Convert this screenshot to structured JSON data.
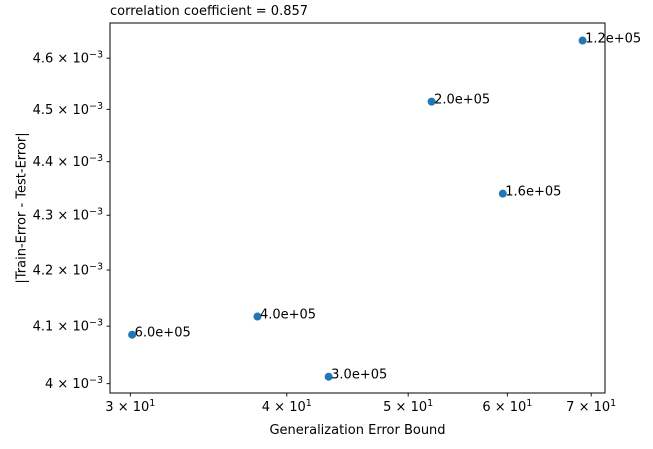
{
  "chart_data": {
    "type": "scatter",
    "title": "correlation coefficient = 0.857",
    "xlabel": "Generalization Error Bound",
    "ylabel": "|Train-Error - Test-Error|",
    "xscale": "log",
    "yscale": "log",
    "xlim": [
      28.9,
      71.8
    ],
    "ylim": [
      0.003984,
      0.00467
    ],
    "grid": false,
    "legend": "none",
    "marker_color": "#1f77b4",
    "spine_color": "#000000",
    "x_ticks": [
      {
        "value": 30,
        "mantissa": "3",
        "exponent": "1"
      },
      {
        "value": 40,
        "mantissa": "4",
        "exponent": "1"
      },
      {
        "value": 50,
        "mantissa": "5",
        "exponent": "1"
      },
      {
        "value": 60,
        "mantissa": "6",
        "exponent": "1"
      },
      {
        "value": 70,
        "mantissa": "7",
        "exponent": "1"
      }
    ],
    "y_ticks": [
      {
        "value": 0.004,
        "mantissa": "4",
        "exponent": "−3"
      },
      {
        "value": 0.0041,
        "mantissa": "4.1",
        "exponent": "−3"
      },
      {
        "value": 0.0042,
        "mantissa": "4.2",
        "exponent": "−3"
      },
      {
        "value": 0.0043,
        "mantissa": "4.3",
        "exponent": "−3"
      },
      {
        "value": 0.0044,
        "mantissa": "4.4",
        "exponent": "−3"
      },
      {
        "value": 0.0045,
        "mantissa": "4.5",
        "exponent": "−3"
      },
      {
        "value": 0.0046,
        "mantissa": "4.6",
        "exponent": "−3"
      }
    ],
    "points": [
      {
        "label": "6.0e+05",
        "x": 30.1,
        "y": 0.004085
      },
      {
        "label": "4.0e+05",
        "x": 37.9,
        "y": 0.004117
      },
      {
        "label": "3.0e+05",
        "x": 43.2,
        "y": 0.004012
      },
      {
        "label": "2.0e+05",
        "x": 52.2,
        "y": 0.004515
      },
      {
        "label": "1.6e+05",
        "x": 59.5,
        "y": 0.00434
      },
      {
        "label": "1.2e+05",
        "x": 68.9,
        "y": 0.004635
      }
    ]
  }
}
